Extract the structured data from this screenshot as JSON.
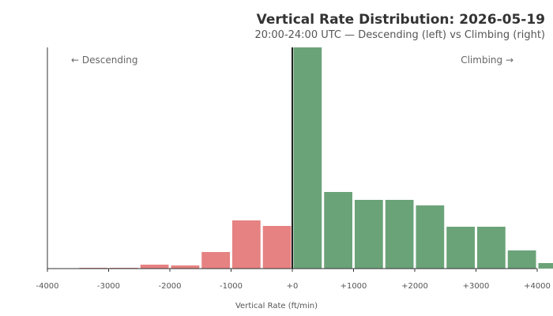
{
  "chart_data": {
    "type": "bar",
    "title": "Vertical Rate Distribution: 2026-05-19",
    "subtitle": "20:00-24:00 UTC — Descending (left) vs Climbing (right)",
    "xlabel": "Vertical Rate (ft/min)",
    "ylabel": "",
    "xlim": [
      -4000,
      4000
    ],
    "xticks": [
      -4000,
      -3000,
      -2000,
      -1000,
      0,
      1000,
      2000,
      3000,
      4000
    ],
    "xtick_labels": [
      "-4000",
      "-3000",
      "-2000",
      "-1000",
      "+0",
      "+1000",
      "+2000",
      "+3000",
      "+4000"
    ],
    "bin_width": 500,
    "grid": false,
    "legend": "none",
    "colors": {
      "descending": "#e06666",
      "climbing": "#4a8f5c",
      "zero_line": "#222222"
    },
    "annotations": {
      "left": "← Descending",
      "right": "Climbing →"
    },
    "bins": [
      {
        "start": -3500,
        "end": -3000,
        "value": 1,
        "direction": "descending"
      },
      {
        "start": -3000,
        "end": -2500,
        "value": 1,
        "direction": "descending"
      },
      {
        "start": -2500,
        "end": -2000,
        "value": 5,
        "direction": "descending"
      },
      {
        "start": -2000,
        "end": -1500,
        "value": 4,
        "direction": "descending"
      },
      {
        "start": -1500,
        "end": -1000,
        "value": 21,
        "direction": "descending"
      },
      {
        "start": -1000,
        "end": -500,
        "value": 61,
        "direction": "descending"
      },
      {
        "start": -500,
        "end": 0,
        "value": 54,
        "direction": "descending"
      },
      {
        "start": 0,
        "end": 500,
        "value": 280,
        "direction": "climbing"
      },
      {
        "start": 500,
        "end": 1000,
        "value": 97,
        "direction": "climbing"
      },
      {
        "start": 1000,
        "end": 1500,
        "value": 87,
        "direction": "climbing"
      },
      {
        "start": 1500,
        "end": 2000,
        "value": 87,
        "direction": "climbing"
      },
      {
        "start": 2000,
        "end": 2500,
        "value": 80,
        "direction": "climbing"
      },
      {
        "start": 2500,
        "end": 3000,
        "value": 53,
        "direction": "climbing"
      },
      {
        "start": 3000,
        "end": 3500,
        "value": 53,
        "direction": "climbing"
      },
      {
        "start": 3500,
        "end": 4000,
        "value": 23,
        "direction": "climbing"
      },
      {
        "start": 4000,
        "end": 4500,
        "value": 7,
        "direction": "climbing"
      }
    ]
  }
}
